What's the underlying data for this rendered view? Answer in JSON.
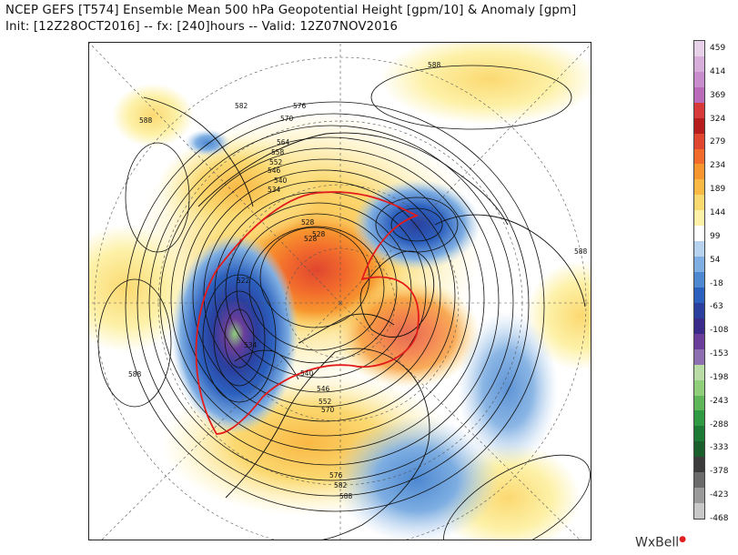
{
  "header": {
    "title": "NCEP GEFS [T574] Ensemble Mean 500 hPa Geopotential Height [gpm/10] & Anomaly [gpm]",
    "subtitle": "Init: [12Z28OCT2016] -- fx: [240]hours -- Valid: 12Z07NOV2016"
  },
  "map": {
    "projection": "north-polar-stereographic",
    "contour_labels": [
      "588",
      "582",
      "576",
      "570",
      "564",
      "558",
      "552",
      "546",
      "540",
      "534",
      "528",
      "528",
      "528",
      "522",
      "534",
      "540",
      "546",
      "552",
      "570",
      "576",
      "582",
      "588",
      "588",
      "588",
      "588"
    ]
  },
  "colorbar": {
    "ticks": [
      "459",
      "414",
      "369",
      "324",
      "279",
      "234",
      "189",
      "144",
      "99",
      "54",
      "-18",
      "-63",
      "-108",
      "-153",
      "-198",
      "-243",
      "-288",
      "-333",
      "-378",
      "-423",
      "-468"
    ],
    "colors": [
      "#e6d1e8",
      "#d7aed9",
      "#c98ccc",
      "#b96bb9",
      "#d83a3a",
      "#b71c1c",
      "#e0462f",
      "#f26b2c",
      "#f7962e",
      "#fab844",
      "#fbd971",
      "#fdf1a8",
      "#ffffff",
      "#b7d2ee",
      "#7eaee2",
      "#4d88d1",
      "#2c60be",
      "#2a3f9e",
      "#3a2a8a",
      "#6a3d9a",
      "#8d6fb1",
      "#b9dba6",
      "#8fcf7a",
      "#5eb659",
      "#2f9a42",
      "#1d7a34",
      "#1a5e2c",
      "#3b3b3b",
      "#6a6a6a",
      "#9a9a9a",
      "#c8c8c8"
    ]
  },
  "brand": {
    "name": "WxBell"
  }
}
